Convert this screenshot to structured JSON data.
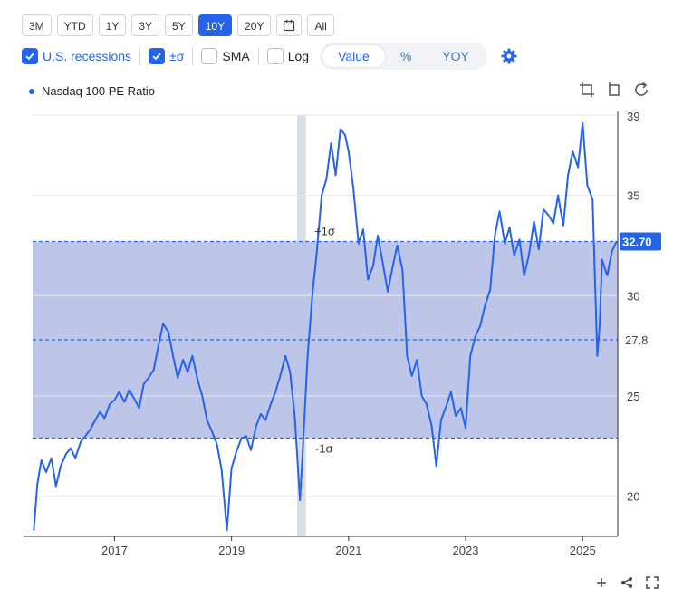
{
  "toolbar": {
    "ranges": [
      {
        "label": "3M",
        "active": false
      },
      {
        "label": "YTD",
        "active": false
      },
      {
        "label": "1Y",
        "active": false
      },
      {
        "label": "3Y",
        "active": false
      },
      {
        "label": "5Y",
        "active": false
      },
      {
        "label": "10Y",
        "active": true
      },
      {
        "label": "20Y",
        "active": false
      }
    ],
    "all_label": "All",
    "calendar_icon": "calendar-icon"
  },
  "options": {
    "recessions": {
      "label": "U.S. recessions",
      "checked": true
    },
    "sigma": {
      "label": "±σ",
      "checked": true
    },
    "sma": {
      "label": "SMA",
      "checked": false
    },
    "log": {
      "label": "Log",
      "checked": false
    },
    "modes": [
      {
        "label": "Value",
        "active": true
      },
      {
        "label": "%",
        "active": false
      },
      {
        "label": "YOY",
        "active": false
      }
    ],
    "settings_icon": "gear-icon"
  },
  "colors": {
    "accent": "#2563eb",
    "band": "#b9c3e8",
    "recession": "#d9dee6",
    "axis_text": "#444444"
  },
  "chart_data": {
    "type": "line",
    "xlim": [
      2015.6,
      2025.6
    ],
    "ylim": [
      18,
      39
    ],
    "x_ticks": [
      2017,
      2019,
      2021,
      2023,
      2025
    ],
    "y_ticks": [
      20,
      25,
      30,
      35,
      39
    ],
    "mean_label": "27.8",
    "mean": 27.8,
    "plus_sigma": 32.7,
    "minus_sigma": 22.9,
    "plus_sigma_label": "+1σ",
    "minus_sigma_label": "-1σ",
    "current_value_label": "32.70",
    "recession": [
      2020.12,
      2020.27
    ],
    "series": [
      {
        "name": "Nasdaq 100 PE Ratio",
        "x": [
          2015.62,
          2015.68,
          2015.75,
          2015.83,
          2015.92,
          2016.0,
          2016.08,
          2016.17,
          2016.25,
          2016.33,
          2016.42,
          2016.5,
          2016.58,
          2016.67,
          2016.75,
          2016.83,
          2016.92,
          2017.0,
          2017.08,
          2017.17,
          2017.25,
          2017.33,
          2017.42,
          2017.5,
          2017.58,
          2017.67,
          2017.75,
          2017.83,
          2017.92,
          2018.0,
          2018.08,
          2018.17,
          2018.25,
          2018.33,
          2018.42,
          2018.5,
          2018.58,
          2018.67,
          2018.75,
          2018.83,
          2018.92,
          2019.0,
          2019.08,
          2019.17,
          2019.25,
          2019.33,
          2019.42,
          2019.5,
          2019.58,
          2019.67,
          2019.75,
          2019.83,
          2019.92,
          2020.0,
          2020.08,
          2020.17,
          2020.22,
          2020.3,
          2020.38,
          2020.46,
          2020.54,
          2020.62,
          2020.7,
          2020.78,
          2020.86,
          2020.94,
          2021.0,
          2021.08,
          2021.17,
          2021.25,
          2021.33,
          2021.42,
          2021.5,
          2021.58,
          2021.67,
          2021.75,
          2021.83,
          2021.92,
          2022.0,
          2022.08,
          2022.17,
          2022.25,
          2022.33,
          2022.42,
          2022.5,
          2022.58,
          2022.67,
          2022.75,
          2022.83,
          2022.92,
          2023.0,
          2023.08,
          2023.17,
          2023.25,
          2023.33,
          2023.42,
          2023.5,
          2023.58,
          2023.67,
          2023.75,
          2023.83,
          2023.92,
          2024.0,
          2024.08,
          2024.17,
          2024.25,
          2024.33,
          2024.42,
          2024.5,
          2024.58,
          2024.67,
          2024.75,
          2024.83,
          2024.92,
          2025.0,
          2025.08,
          2025.17,
          2025.25,
          2025.29,
          2025.33,
          2025.42,
          2025.5,
          2025.58
        ],
        "values": [
          18.3,
          20.6,
          21.8,
          21.2,
          21.9,
          20.5,
          21.5,
          22.1,
          22.4,
          21.9,
          22.7,
          23.0,
          23.3,
          23.8,
          24.2,
          23.9,
          24.6,
          24.8,
          25.2,
          24.7,
          25.3,
          24.9,
          24.4,
          25.6,
          25.9,
          26.3,
          27.5,
          28.6,
          28.2,
          27.0,
          25.9,
          26.8,
          26.2,
          27.0,
          25.8,
          25.0,
          23.8,
          23.2,
          22.6,
          21.3,
          18.3,
          21.4,
          22.2,
          22.9,
          23.0,
          22.3,
          23.5,
          24.1,
          23.8,
          24.6,
          25.2,
          26.0,
          27.0,
          26.2,
          24.0,
          19.8,
          22.5,
          27.0,
          30.0,
          32.3,
          35.0,
          35.8,
          37.6,
          36.0,
          38.3,
          38.0,
          37.2,
          35.4,
          32.6,
          33.3,
          30.8,
          31.5,
          33.0,
          31.7,
          30.2,
          31.4,
          32.5,
          31.3,
          27.0,
          26.0,
          26.8,
          25.0,
          24.6,
          23.5,
          21.5,
          23.8,
          24.5,
          25.2,
          24.0,
          24.4,
          23.4,
          27.0,
          28.0,
          28.5,
          29.5,
          30.3,
          33.0,
          34.2,
          32.6,
          33.4,
          32.0,
          32.8,
          31.0,
          32.0,
          33.7,
          32.3,
          34.3,
          34.0,
          33.6,
          35.0,
          33.5,
          36.0,
          37.2,
          36.4,
          38.6,
          35.5,
          34.8,
          27.0,
          28.5,
          31.8,
          31.0,
          32.2,
          32.7
        ]
      }
    ]
  }
}
